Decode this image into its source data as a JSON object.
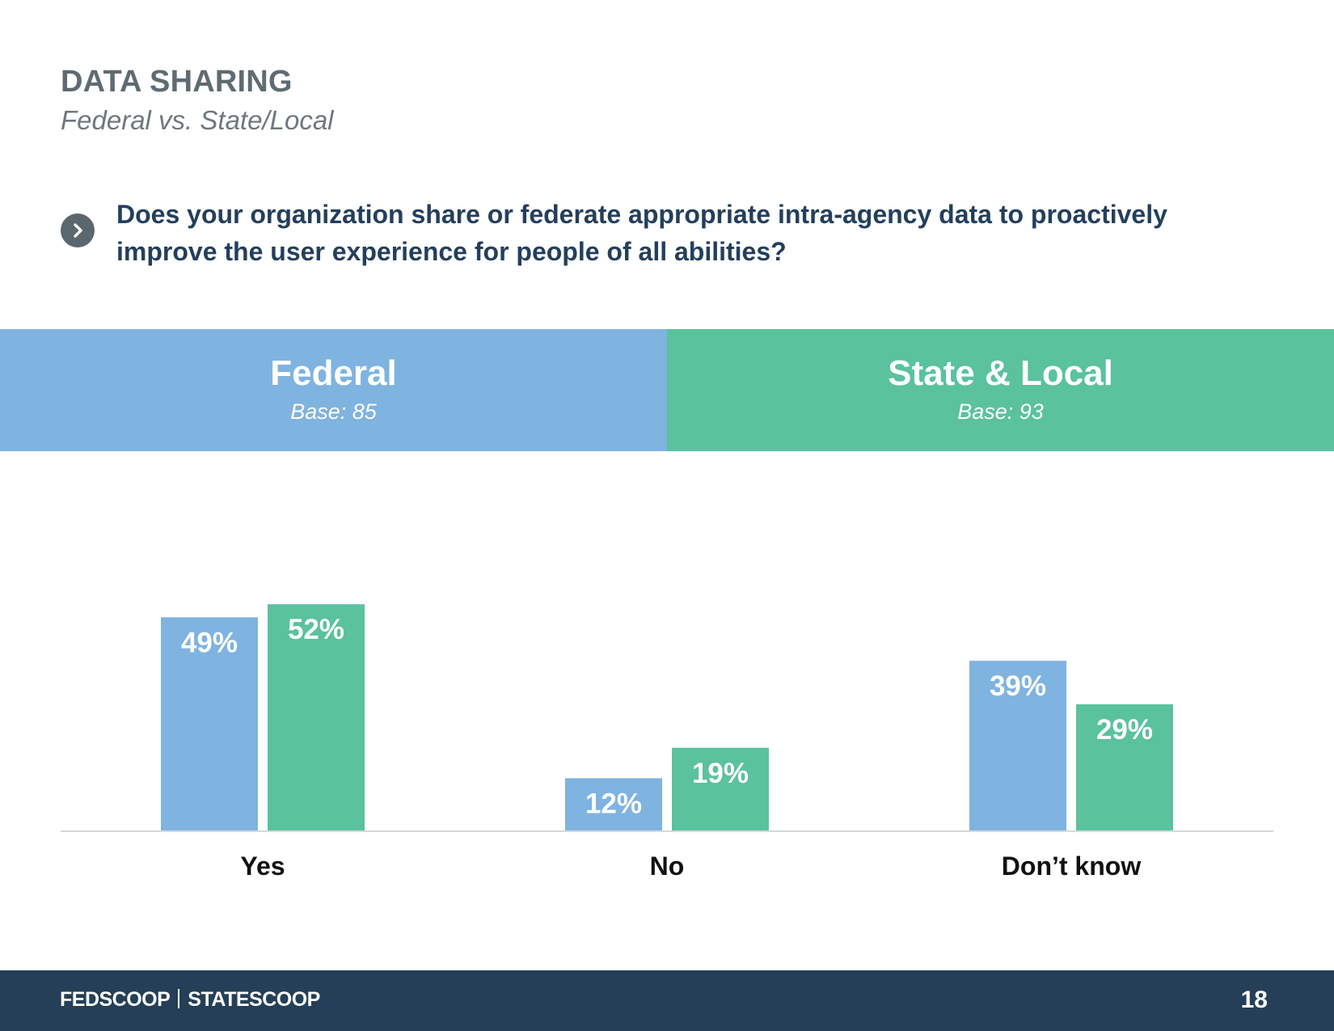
{
  "header": {
    "title": "DATA SHARING",
    "subtitle": "Federal vs. State/Local"
  },
  "question": {
    "icon": "chevron-right-icon",
    "text": "Does your organization share or federate appropriate intra-agency data to proactively improve the user experience for people of all abilities?"
  },
  "groups": [
    {
      "name": "Federal",
      "base": "Base: 85",
      "color": "#7fb3e0"
    },
    {
      "name": "State & Local",
      "base": "Base: 93",
      "color": "#5ac29d"
    }
  ],
  "chart_data": {
    "type": "bar",
    "categories": [
      "Yes",
      "No",
      "Don’t know"
    ],
    "series": [
      {
        "name": "Federal",
        "values": [
          49,
          12,
          39
        ],
        "color": "#7fb3e0"
      },
      {
        "name": "State & Local",
        "values": [
          52,
          19,
          29
        ],
        "color": "#5ac29d"
      }
    ],
    "data_labels": [
      [
        "49%",
        "12%",
        "39%"
      ],
      [
        "52%",
        "19%",
        "29%"
      ]
    ],
    "unit": "%",
    "ylim": [
      0,
      100
    ],
    "grid": false
  },
  "footer": {
    "brand_left": "FEDSCOOP",
    "brand_right": "STATESCOOP",
    "page_number": "18"
  }
}
